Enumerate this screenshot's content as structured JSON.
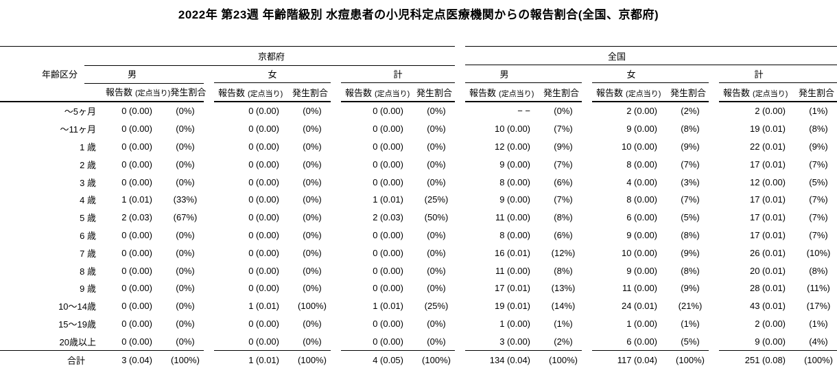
{
  "title": "2022年 第23週 年齢階級別 水痘患者の小児科定点医療機関からの報告割合(全国、京都府)",
  "colors": {
    "text": "#000000",
    "background": "#ffffff",
    "rule": "#000000"
  },
  "table": {
    "age_header": "年齢区分",
    "regions": [
      "京都府",
      "全国"
    ],
    "genders": [
      "男",
      "女",
      "計",
      "男",
      "女",
      "計"
    ],
    "sub": {
      "count": "報告数",
      "per_sentinel": "(定点当り)",
      "rate": "発生割合"
    },
    "rows": [
      {
        "age": "～5ヶ月",
        "total": false,
        "cells": [
          [
            "0 (0.00)",
            "(0%)"
          ],
          [
            "0 (0.00)",
            "(0%)"
          ],
          [
            "0 (0.00)",
            "(0%)"
          ],
          [
            "− −",
            "(0%)"
          ],
          [
            "2 (0.00)",
            "(2%)"
          ],
          [
            "2 (0.00)",
            "(1%)"
          ]
        ]
      },
      {
        "age": "～11ヶ月",
        "total": false,
        "cells": [
          [
            "0 (0.00)",
            "(0%)"
          ],
          [
            "0 (0.00)",
            "(0%)"
          ],
          [
            "0 (0.00)",
            "(0%)"
          ],
          [
            "10 (0.00)",
            "(7%)"
          ],
          [
            "9 (0.00)",
            "(8%)"
          ],
          [
            "19 (0.01)",
            "(8%)"
          ]
        ]
      },
      {
        "age": "1 歳",
        "total": false,
        "cells": [
          [
            "0 (0.00)",
            "(0%)"
          ],
          [
            "0 (0.00)",
            "(0%)"
          ],
          [
            "0 (0.00)",
            "(0%)"
          ],
          [
            "12 (0.00)",
            "(9%)"
          ],
          [
            "10 (0.00)",
            "(9%)"
          ],
          [
            "22 (0.01)",
            "(9%)"
          ]
        ]
      },
      {
        "age": "2 歳",
        "total": false,
        "cells": [
          [
            "0 (0.00)",
            "(0%)"
          ],
          [
            "0 (0.00)",
            "(0%)"
          ],
          [
            "0 (0.00)",
            "(0%)"
          ],
          [
            "9 (0.00)",
            "(7%)"
          ],
          [
            "8 (0.00)",
            "(7%)"
          ],
          [
            "17 (0.01)",
            "(7%)"
          ]
        ]
      },
      {
        "age": "3 歳",
        "total": false,
        "cells": [
          [
            "0 (0.00)",
            "(0%)"
          ],
          [
            "0 (0.00)",
            "(0%)"
          ],
          [
            "0 (0.00)",
            "(0%)"
          ],
          [
            "8 (0.00)",
            "(6%)"
          ],
          [
            "4 (0.00)",
            "(3%)"
          ],
          [
            "12 (0.00)",
            "(5%)"
          ]
        ]
      },
      {
        "age": "4 歳",
        "total": false,
        "cells": [
          [
            "1 (0.01)",
            "(33%)"
          ],
          [
            "0 (0.00)",
            "(0%)"
          ],
          [
            "1 (0.01)",
            "(25%)"
          ],
          [
            "9 (0.00)",
            "(7%)"
          ],
          [
            "8 (0.00)",
            "(7%)"
          ],
          [
            "17 (0.01)",
            "(7%)"
          ]
        ]
      },
      {
        "age": "5 歳",
        "total": false,
        "cells": [
          [
            "2 (0.03)",
            "(67%)"
          ],
          [
            "0 (0.00)",
            "(0%)"
          ],
          [
            "2 (0.03)",
            "(50%)"
          ],
          [
            "11 (0.00)",
            "(8%)"
          ],
          [
            "6 (0.00)",
            "(5%)"
          ],
          [
            "17 (0.01)",
            "(7%)"
          ]
        ]
      },
      {
        "age": "6 歳",
        "total": false,
        "cells": [
          [
            "0 (0.00)",
            "(0%)"
          ],
          [
            "0 (0.00)",
            "(0%)"
          ],
          [
            "0 (0.00)",
            "(0%)"
          ],
          [
            "8 (0.00)",
            "(6%)"
          ],
          [
            "9 (0.00)",
            "(8%)"
          ],
          [
            "17 (0.01)",
            "(7%)"
          ]
        ]
      },
      {
        "age": "7 歳",
        "total": false,
        "cells": [
          [
            "0 (0.00)",
            "(0%)"
          ],
          [
            "0 (0.00)",
            "(0%)"
          ],
          [
            "0 (0.00)",
            "(0%)"
          ],
          [
            "16 (0.01)",
            "(12%)"
          ],
          [
            "10 (0.00)",
            "(9%)"
          ],
          [
            "26 (0.01)",
            "(10%)"
          ]
        ]
      },
      {
        "age": "8 歳",
        "total": false,
        "cells": [
          [
            "0 (0.00)",
            "(0%)"
          ],
          [
            "0 (0.00)",
            "(0%)"
          ],
          [
            "0 (0.00)",
            "(0%)"
          ],
          [
            "11 (0.00)",
            "(8%)"
          ],
          [
            "9 (0.00)",
            "(8%)"
          ],
          [
            "20 (0.01)",
            "(8%)"
          ]
        ]
      },
      {
        "age": "9 歳",
        "total": false,
        "cells": [
          [
            "0 (0.00)",
            "(0%)"
          ],
          [
            "0 (0.00)",
            "(0%)"
          ],
          [
            "0 (0.00)",
            "(0%)"
          ],
          [
            "17 (0.01)",
            "(13%)"
          ],
          [
            "11 (0.00)",
            "(9%)"
          ],
          [
            "28 (0.01)",
            "(11%)"
          ]
        ]
      },
      {
        "age": "10～14歳",
        "total": false,
        "cells": [
          [
            "0 (0.00)",
            "(0%)"
          ],
          [
            "1 (0.01)",
            "(100%)"
          ],
          [
            "1 (0.01)",
            "(25%)"
          ],
          [
            "19 (0.01)",
            "(14%)"
          ],
          [
            "24 (0.01)",
            "(21%)"
          ],
          [
            "43 (0.01)",
            "(17%)"
          ]
        ]
      },
      {
        "age": "15～19歳",
        "total": false,
        "cells": [
          [
            "0 (0.00)",
            "(0%)"
          ],
          [
            "0 (0.00)",
            "(0%)"
          ],
          [
            "0 (0.00)",
            "(0%)"
          ],
          [
            "1 (0.00)",
            "(1%)"
          ],
          [
            "1 (0.00)",
            "(1%)"
          ],
          [
            "2 (0.00)",
            "(1%)"
          ]
        ]
      },
      {
        "age": "20歳以上",
        "total": false,
        "cells": [
          [
            "0 (0.00)",
            "(0%)"
          ],
          [
            "0 (0.00)",
            "(0%)"
          ],
          [
            "0 (0.00)",
            "(0%)"
          ],
          [
            "3 (0.00)",
            "(2%)"
          ],
          [
            "6 (0.00)",
            "(5%)"
          ],
          [
            "9 (0.00)",
            "(4%)"
          ]
        ]
      },
      {
        "age": "合計",
        "total": true,
        "cells": [
          [
            "3 (0.04)",
            "(100%)"
          ],
          [
            "1 (0.01)",
            "(100%)"
          ],
          [
            "4 (0.05)",
            "(100%)"
          ],
          [
            "134 (0.04)",
            "(100%)"
          ],
          [
            "117 (0.04)",
            "(100%)"
          ],
          [
            "251 (0.08)",
            "(100%)"
          ]
        ]
      }
    ]
  }
}
